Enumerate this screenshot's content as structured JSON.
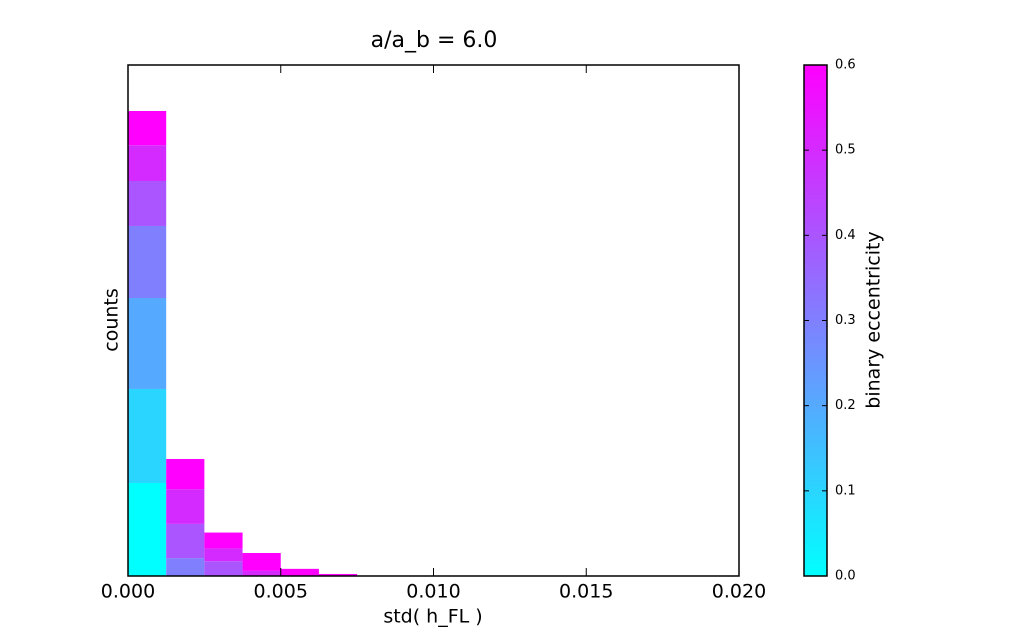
{
  "chart_data": {
    "type": "histogram",
    "title": "a/a_b = 6.0",
    "xlabel": "std( h_FL )",
    "ylabel": "counts",
    "bins": [
      0,
      0.00125,
      0.0025,
      0.00375,
      0.005,
      0.00625,
      0.0075,
      0.00875,
      0.01,
      0.01125,
      0.0125,
      0.01375,
      0.015,
      0.01625,
      0.0175,
      0.01875,
      0.02
    ],
    "stacked": true,
    "series": [
      {
        "color": "#00ffff",
        "values": [
          18.2,
          0,
          0,
          0,
          0,
          0,
          0,
          0,
          0,
          0,
          0,
          0,
          0,
          0,
          0,
          0
        ]
      },
      {
        "color": "#2ad5ff",
        "values": [
          18.4,
          0,
          0,
          0,
          0,
          0,
          0,
          0,
          0,
          0,
          0,
          0,
          0,
          0,
          0,
          0
        ]
      },
      {
        "color": "#55aaff",
        "values": [
          17.8,
          0,
          0,
          0,
          0,
          0,
          0,
          0,
          0,
          0,
          0,
          0,
          0,
          0,
          0,
          0
        ]
      },
      {
        "color": "#8080ff",
        "values": [
          14.1,
          3.5,
          0,
          0,
          0,
          0,
          0,
          0,
          0,
          0,
          0,
          0,
          0,
          0,
          0,
          0
        ]
      },
      {
        "color": "#aa55ff",
        "values": [
          8.8,
          6.7,
          2.9,
          0,
          0,
          0,
          0,
          0,
          0,
          0,
          0,
          0,
          0,
          0,
          0,
          0
        ]
      },
      {
        "color": "#d52aff",
        "values": [
          7.0,
          6.8,
          2.5,
          1.0,
          0,
          0,
          0,
          0,
          0,
          0,
          0,
          0,
          0,
          0,
          0,
          0
        ]
      },
      {
        "color": "#ff00ff",
        "values": [
          6.7,
          5.9,
          3.1,
          3.5,
          1.4,
          0.4,
          0.1,
          0.1,
          0.1,
          0.1,
          0.1,
          0.1,
          0.1,
          0.1,
          0.1,
          0.1
        ]
      }
    ],
    "xlim": [
      0,
      0.02
    ],
    "xticks": [
      {
        "value": 0,
        "label": "0.000"
      },
      {
        "value": 0.005,
        "label": "0.005"
      },
      {
        "value": 0.01,
        "label": "0.010"
      },
      {
        "value": 0.015,
        "label": "0.015"
      },
      {
        "value": 0.02,
        "label": "0.020"
      }
    ],
    "ylim": [
      0,
      100
    ],
    "colorbar": {
      "label": "binary eccentricity",
      "clim": [
        0,
        0.6
      ],
      "ticks": [
        {
          "value": 0,
          "label": "0.0"
        },
        0.1,
        0.2,
        0.3,
        0.4,
        0.5,
        0.6
      ]
    }
  }
}
